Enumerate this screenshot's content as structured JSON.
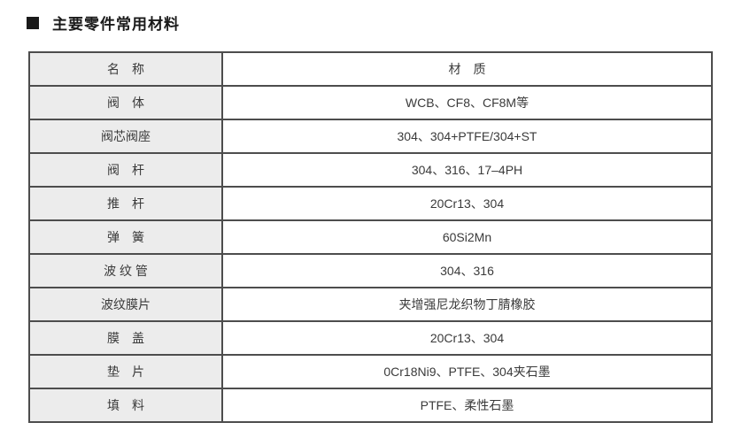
{
  "page": {
    "title_bullet": "■",
    "title": "主要零件常用材料"
  },
  "table": {
    "headers": {
      "name": "名　称",
      "material": "材　质"
    },
    "rows": [
      {
        "name": "阀　体",
        "material": "WCB、CF8、CF8M等"
      },
      {
        "name": "阀芯阀座",
        "material": "304、304+PTFE/304+ST"
      },
      {
        "name": "阀　杆",
        "material": "304、316、17–4PH"
      },
      {
        "name": "推　杆",
        "material": "20Cr13、304"
      },
      {
        "name": "弹　簧",
        "material": "60Si2Mn"
      },
      {
        "name": "波 纹 管",
        "material": "304、316"
      },
      {
        "name": "波纹膜片",
        "material": "夹增强尼龙织物丁腈橡胶"
      },
      {
        "name": "膜　盖",
        "material": "20Cr13、304"
      },
      {
        "name": "垫　片",
        "material": "0Cr18Ni9、PTFE、304夹石墨"
      },
      {
        "name": "填　料",
        "material": "PTFE、柔性石墨"
      }
    ]
  },
  "colors": {
    "border": "#4d4d4d",
    "name_column_bg": "#ececec",
    "text": "#3a3a3a",
    "title": "#1a1a1a"
  }
}
